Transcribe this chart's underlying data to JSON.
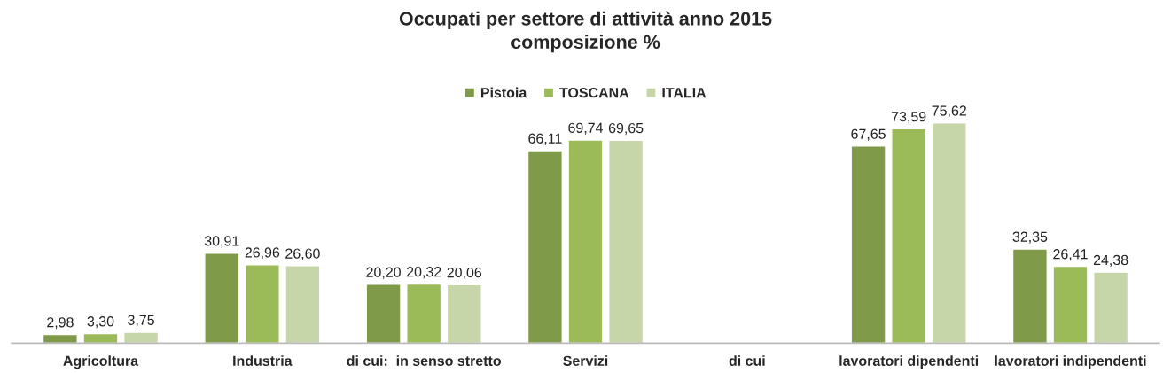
{
  "chart_data": {
    "type": "bar",
    "title": "Occupati per settore di attività anno 2015\ncomposizione %",
    "categories": [
      "Agricoltura",
      "Industria",
      "di cui:  in senso stretto",
      "Servizi",
      "di cui",
      "lavoratori dipendenti",
      "lavoratori indipendenti"
    ],
    "series": [
      {
        "name": "Pistoia",
        "color": "#7f9a48",
        "values": [
          2.98,
          30.91,
          20.2,
          66.11,
          null,
          67.65,
          32.35
        ],
        "value_labels": [
          "2,98",
          "30,91",
          "20,20",
          "66,11",
          null,
          "67,65",
          "32,35"
        ]
      },
      {
        "name": "TOSCANA",
        "color": "#9bbb59",
        "values": [
          3.3,
          26.96,
          20.32,
          69.74,
          null,
          73.59,
          26.41
        ],
        "value_labels": [
          "3,30",
          "26,96",
          "20,32",
          "69,74",
          null,
          "73,59",
          "26,41"
        ]
      },
      {
        "name": "ITALIA",
        "color": "#c6d6a8",
        "values": [
          3.75,
          26.6,
          20.06,
          69.65,
          null,
          75.62,
          24.38
        ],
        "value_labels": [
          "3,75",
          "26,60",
          "20,06",
          "69,65",
          null,
          "75,62",
          "24,38"
        ]
      }
    ],
    "legend": "top",
    "grid": false
  }
}
